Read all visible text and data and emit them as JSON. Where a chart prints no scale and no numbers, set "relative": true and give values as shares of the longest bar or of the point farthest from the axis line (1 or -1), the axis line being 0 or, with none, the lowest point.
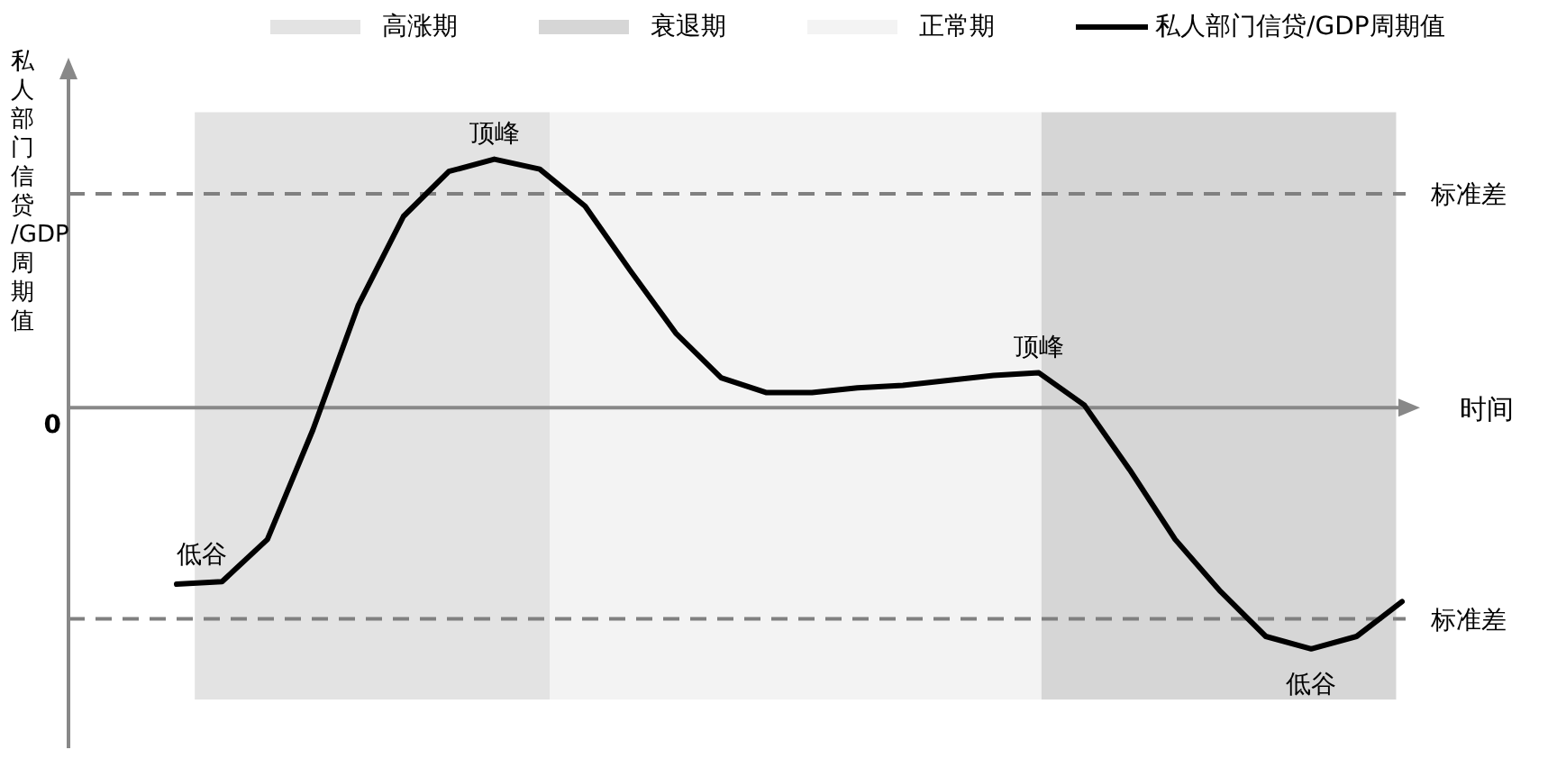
{
  "chart_data": {
    "type": "line",
    "relative": true,
    "ylabel": "私人部门信贷/GDP周期值",
    "xlabel": "时间",
    "legend": "top",
    "categories": [
      null,
      null,
      null,
      null,
      null,
      null,
      null,
      null,
      null,
      null,
      null,
      null,
      null,
      null,
      null,
      null,
      null,
      null,
      null,
      null,
      null,
      null,
      null,
      null,
      null,
      null,
      null,
      null
    ],
    "series": [
      {
        "name": "私人部门信贷/GDP周期值",
        "color": "#000000",
        "values": [
          -0.71,
          -0.7,
          -0.53,
          -0.09,
          0.41,
          0.77,
          0.95,
          1,
          0.96,
          0.81,
          0.55,
          0.3,
          0.12,
          0.06,
          0.06,
          0.08,
          0.09,
          0.11,
          0.13,
          0.14,
          0.01,
          -0.25,
          -0.53,
          -0.74,
          -0.92,
          -0.97,
          -0.92,
          -0.78
        ]
      }
    ],
    "ref_lines": [
      {
        "axis": "y",
        "value": 0.86,
        "label": "标准差",
        "color": "#808080",
        "line_style": "dashed"
      },
      {
        "axis": "y",
        "value": -0.85,
        "label": "标准差",
        "color": "#808080",
        "line_style": "dashed"
      }
    ],
    "annotations": [
      {
        "text": "低谷",
        "y": -0.71
      },
      {
        "text": "顶峰",
        "y": 1
      },
      {
        "text": "顶峰",
        "y": 0.14
      },
      {
        "text": "低谷",
        "y": -0.97
      },
      "0",
      "高涨期",
      "衰退期",
      "正常期"
    ]
  }
}
